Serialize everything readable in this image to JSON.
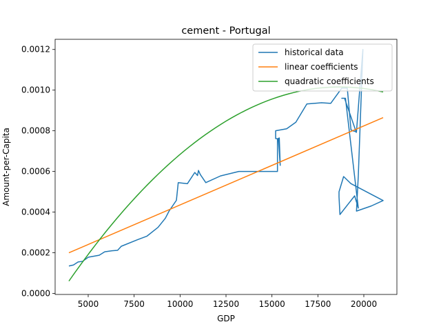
{
  "chart_data": {
    "type": "line",
    "title": "cement - Portugal",
    "xlabel": "GDP",
    "ylabel": "Amount-per-Capita",
    "xlim": [
      3200,
      21800
    ],
    "ylim": [
      -5e-06,
      0.00125
    ],
    "x_ticks": [
      5000,
      7500,
      10000,
      12500,
      15000,
      17500,
      20000
    ],
    "x_tick_labels": [
      "5000",
      "7500",
      "10000",
      "12500",
      "15000",
      "17500",
      "20000"
    ],
    "y_ticks": [
      0.0,
      0.0002,
      0.0004,
      0.0006,
      0.0008,
      0.001,
      0.0012
    ],
    "y_tick_labels": [
      "0.0000",
      "0.0002",
      "0.0004",
      "0.0006",
      "0.0008",
      "0.0010",
      "0.0012"
    ],
    "grid": false,
    "legend_position": "top-right",
    "series": [
      {
        "name": "historical data",
        "color": "#1f77b4",
        "points": [
          [
            3950,
            0.000135
          ],
          [
            4200,
            0.00014
          ],
          [
            4450,
            0.000155
          ],
          [
            4700,
            0.000158
          ],
          [
            5000,
            0.000178
          ],
          [
            5600,
            0.000188
          ],
          [
            5900,
            0.000205
          ],
          [
            6300,
            0.00021
          ],
          [
            6600,
            0.000212
          ],
          [
            6800,
            0.000232
          ],
          [
            7700,
            0.000265
          ],
          [
            8200,
            0.000282
          ],
          [
            8800,
            0.000325
          ],
          [
            9200,
            0.00037
          ],
          [
            9400,
            0.000405
          ],
          [
            9800,
            0.000458
          ],
          [
            9900,
            0.000545
          ],
          [
            10400,
            0.00054
          ],
          [
            10800,
            0.000595
          ],
          [
            10950,
            0.00058
          ],
          [
            11000,
            0.000605
          ],
          [
            11100,
            0.000585
          ],
          [
            11400,
            0.000545
          ],
          [
            12200,
            0.000578
          ],
          [
            13200,
            0.0006
          ],
          [
            15300,
            0.0006
          ],
          [
            15300,
            0.00076
          ],
          [
            15400,
            0.000765
          ],
          [
            15450,
            0.00063
          ],
          [
            15350,
            0.00076
          ],
          [
            15200,
            0.000762
          ],
          [
            15200,
            0.0008
          ],
          [
            15800,
            0.00081
          ],
          [
            16300,
            0.000842
          ],
          [
            16900,
            0.000932
          ],
          [
            17700,
            0.000938
          ],
          [
            18200,
            0.000935
          ],
          [
            18800,
            0.00101
          ],
          [
            19100,
            0.00101
          ],
          [
            19300,
            0.000805
          ],
          [
            19400,
            0.0008
          ],
          [
            19600,
            0.000795
          ],
          [
            19800,
            0.00103
          ],
          [
            19950,
            0.0012
          ],
          [
            19700,
            0.00058
          ],
          [
            19600,
            0.000405
          ],
          [
            20400,
            0.00043
          ],
          [
            21050,
            0.000457
          ],
          [
            19300,
            0.00054
          ],
          [
            18900,
            0.000575
          ],
          [
            18650,
            0.0005
          ],
          [
            18650,
            0.000475
          ],
          [
            18700,
            0.000388
          ],
          [
            19500,
            0.00048
          ],
          [
            19600,
            0.00045
          ],
          [
            19700,
            0.00042
          ],
          [
            19000,
            0.00096
          ],
          [
            18800,
            0.00096
          ],
          [
            18950,
            0.00096
          ],
          [
            19600,
            0.00079
          ]
        ]
      },
      {
        "name": "linear coefficients",
        "color": "#ff7f0e",
        "points": [
          [
            3950,
            0.0002
          ],
          [
            21050,
            0.000865
          ]
        ]
      },
      {
        "name": "quadratic coefficients",
        "color": "#2ca02c",
        "quadratic": {
          "a": -4.4e-12,
          "b": 1.644e-07,
          "c": -0.00052
        },
        "x_range": [
          3950,
          21050
        ]
      }
    ]
  }
}
